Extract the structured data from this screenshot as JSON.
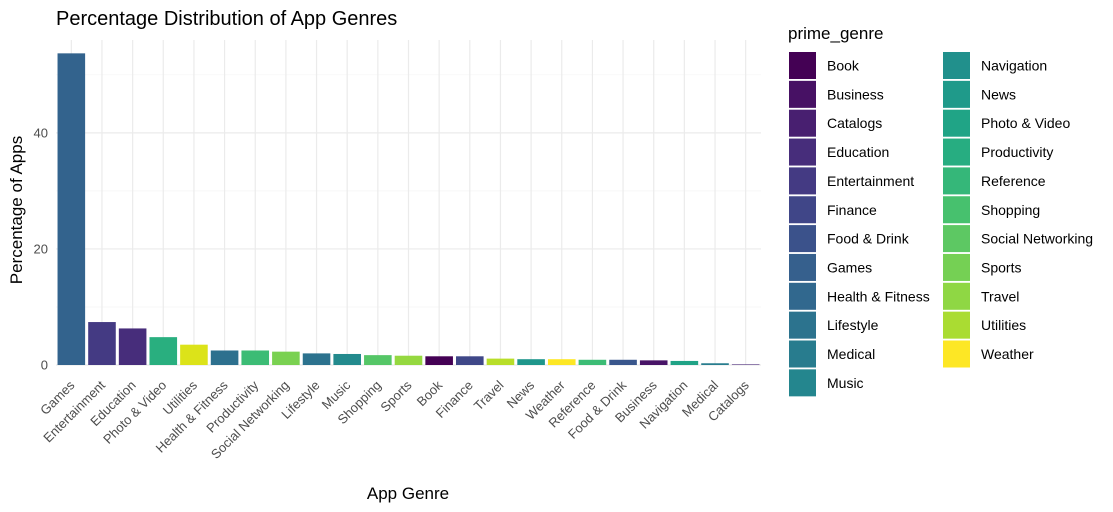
{
  "chart_data": {
    "type": "bar",
    "title": "Percentage Distribution of App Genres",
    "xlabel": "App Genre",
    "ylabel": "Percentage of Apps",
    "ylim": [
      0,
      56
    ],
    "yticks": [
      0,
      20,
      40
    ],
    "grid": true,
    "legend_position": "right",
    "legend_title": "prime_genre",
    "categories": [
      "Games",
      "Entertainment",
      "Education",
      "Photo & Video",
      "Utilities",
      "Health & Fitness",
      "Productivity",
      "Social Networking",
      "Lifestyle",
      "Music",
      "Shopping",
      "Sports",
      "Book",
      "Finance",
      "Travel",
      "News",
      "Weather",
      "Reference",
      "Food & Drink",
      "Business",
      "Navigation",
      "Medical",
      "Catalogs"
    ],
    "values": [
      53.7,
      7.4,
      6.3,
      4.8,
      3.5,
      2.5,
      2.5,
      2.3,
      2.0,
      1.9,
      1.7,
      1.6,
      1.5,
      1.5,
      1.1,
      1.0,
      1.0,
      0.9,
      0.9,
      0.8,
      0.7,
      0.3,
      0.1
    ],
    "legend": [
      "Book",
      "Business",
      "Catalogs",
      "Education",
      "Entertainment",
      "Finance",
      "Food & Drink",
      "Games",
      "Health & Fitness",
      "Lifestyle",
      "Medical",
      "Music",
      "Navigation",
      "News",
      "Photo & Video",
      "Productivity",
      "Reference",
      "Shopping",
      "Social Networking",
      "Sports",
      "Travel",
      "Utilities",
      "Weather"
    ],
    "colors": {
      "Book": "#440154",
      "Business": "#471164",
      "Catalogs": "#481F70",
      "Education": "#472D7B",
      "Entertainment": "#443A83",
      "Finance": "#404688",
      "Food & Drink": "#3B528B",
      "Games": "#36608D",
      "Health & Fitness": "#31688E",
      "Lifestyle": "#2C738E",
      "Medical": "#287C8E",
      "Music": "#24868E",
      "Navigation": "#21908C",
      "News": "#1F9A8A",
      "Photo & Video": "#20A486",
      "Productivity": "#27AD81",
      "Reference": "#35B779",
      "Shopping": "#47C16E",
      "Social Networking": "#5DC863",
      "Sports": "#75D054",
      "Travel": "#8FD744",
      "Utilities": "#AADC32",
      "Weather": "#FDE725"
    },
    "bar_colors": {
      "Games": "#33638D",
      "Entertainment": "#443A83",
      "Education": "#472D7B",
      "Photo & Video": "#29AF7F",
      "Utilities": "#DCE319",
      "Health & Fitness": "#2D708E",
      "Productivity": "#3CBC75",
      "Social Networking": "#7AD151",
      "Lifestyle": "#2C728E",
      "Music": "#238A8D",
      "Shopping": "#55C667",
      "Sports": "#95D840",
      "Book": "#440154",
      "Finance": "#3F4788",
      "Travel": "#B8DE29",
      "News": "#1F968B",
      "Weather": "#FDE725",
      "Reference": "#3CBC75",
      "Food & Drink": "#39568C",
      "Business": "#481467",
      "Navigation": "#20A386",
      "Medical": "#287D8E",
      "Catalogs": "#482576"
    }
  }
}
